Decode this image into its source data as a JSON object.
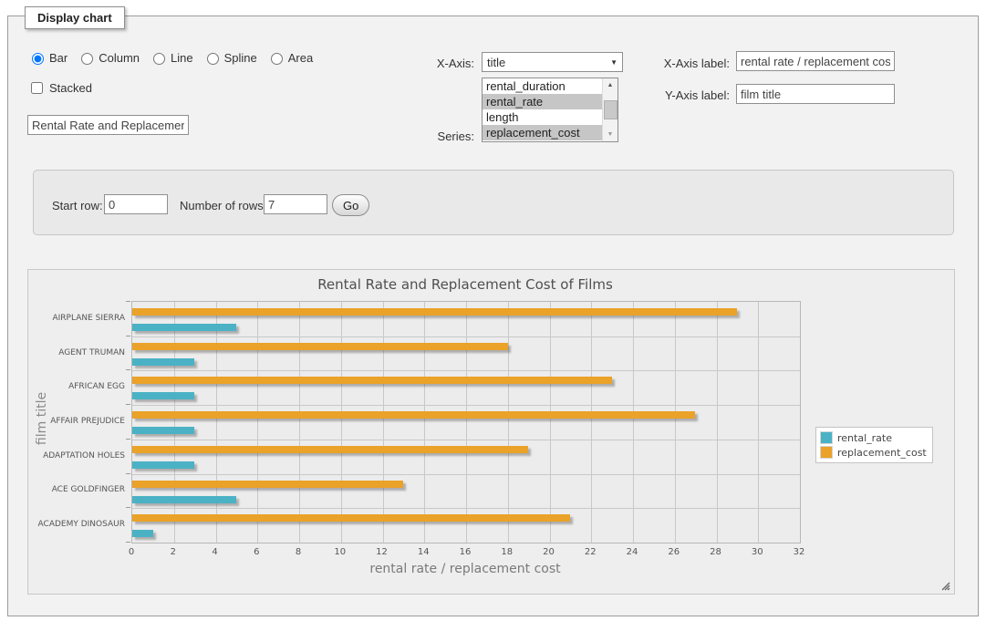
{
  "panel": {
    "tab_label": "Display chart"
  },
  "chart_types": [
    {
      "label": "Bar",
      "selected": true
    },
    {
      "label": "Column",
      "selected": false
    },
    {
      "label": "Line",
      "selected": false
    },
    {
      "label": "Spline",
      "selected": false
    },
    {
      "label": "Area",
      "selected": false
    }
  ],
  "stacked": {
    "label": "Stacked",
    "checked": false
  },
  "title_input": {
    "value": "Rental Rate and Replacement Cost of Films"
  },
  "x_axis": {
    "label": "X-Axis:",
    "value": "title"
  },
  "series_select": {
    "label": "Series:",
    "options": [
      {
        "label": "rental_duration",
        "selected": false
      },
      {
        "label": "rental_rate",
        "selected": true
      },
      {
        "label": "length",
        "selected": false
      },
      {
        "label": "replacement_cost",
        "selected": true
      }
    ]
  },
  "x_axis_label": {
    "label": "X-Axis label:",
    "value": "rental rate / replacement cost"
  },
  "y_axis_label": {
    "label": "Y-Axis label:",
    "value": "film title"
  },
  "rows_form": {
    "start_row_label": "Start row:",
    "start_row_value": "0",
    "num_rows_label": "Number of rows:",
    "num_rows_value": "7",
    "go_label": "Go"
  },
  "chart_data": {
    "type": "bar",
    "orientation": "horizontal",
    "title": "Rental Rate and Replacement Cost of Films",
    "categories": [
      "AIRPLANE SIERRA",
      "AGENT TRUMAN",
      "AFRICAN EGG",
      "AFFAIR PREJUDICE",
      "ADAPTATION HOLES",
      "ACE GOLDFINGER",
      "ACADEMY DINOSAUR"
    ],
    "series": [
      {
        "name": "rental_rate",
        "color": "#4bb2c5",
        "values": [
          4.99,
          2.99,
          2.99,
          2.99,
          2.99,
          4.99,
          0.99
        ]
      },
      {
        "name": "replacement_cost",
        "color": "#EAA228",
        "values": [
          28.99,
          17.99,
          22.99,
          26.99,
          18.99,
          12.99,
          20.99
        ]
      }
    ],
    "xlabel": "rental rate / replacement cost",
    "ylabel": "film title",
    "xlim": [
      0,
      32
    ],
    "xtick_step": 2,
    "grid": true,
    "legend_position": "right",
    "grid_background": "#ececec",
    "gridline_color": "#c8c8c8"
  }
}
